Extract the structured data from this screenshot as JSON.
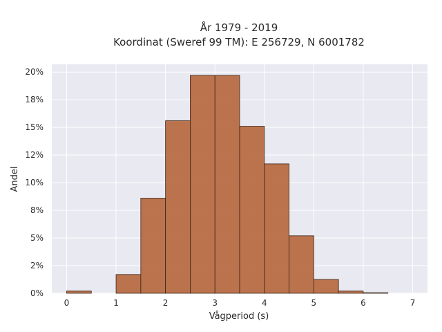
{
  "chart_data": {
    "type": "bar",
    "title_line1": "År 1979 - 2019",
    "title_line2": "Koordinat (Sweref 99 TM): E 256729, N 6001782",
    "xlabel": "Vågperiod (s)",
    "ylabel": "Andel",
    "xlim": [
      -0.3,
      7.3
    ],
    "ylim": [
      0,
      0.207
    ],
    "x_ticks": [
      0,
      1,
      2,
      3,
      4,
      5,
      6,
      7
    ],
    "y_ticks": [
      0,
      0.025,
      0.05,
      0.075,
      0.1,
      0.125,
      0.15,
      0.175,
      0.2
    ],
    "y_tick_labels": [
      "0%",
      "2%",
      "5%",
      "8%",
      "10%",
      "12%",
      "15%",
      "18%",
      "20%"
    ],
    "bin_width": 0.5,
    "bin_starts": [
      0,
      0.5,
      1,
      1.5,
      2,
      2.5,
      3,
      3.5,
      4,
      4.5,
      5,
      5.5,
      6,
      6.5
    ],
    "values": [
      0.002,
      0,
      0.017,
      0.086,
      0.156,
      0.197,
      0.197,
      0.151,
      0.117,
      0.052,
      0.0125,
      0.002,
      0.0005,
      0
    ],
    "bar_color": "#b5663b",
    "bar_edge_color": "#3a2418",
    "plot_background": "#e9e9f1",
    "grid": true,
    "grid_color": "#ffffff"
  }
}
